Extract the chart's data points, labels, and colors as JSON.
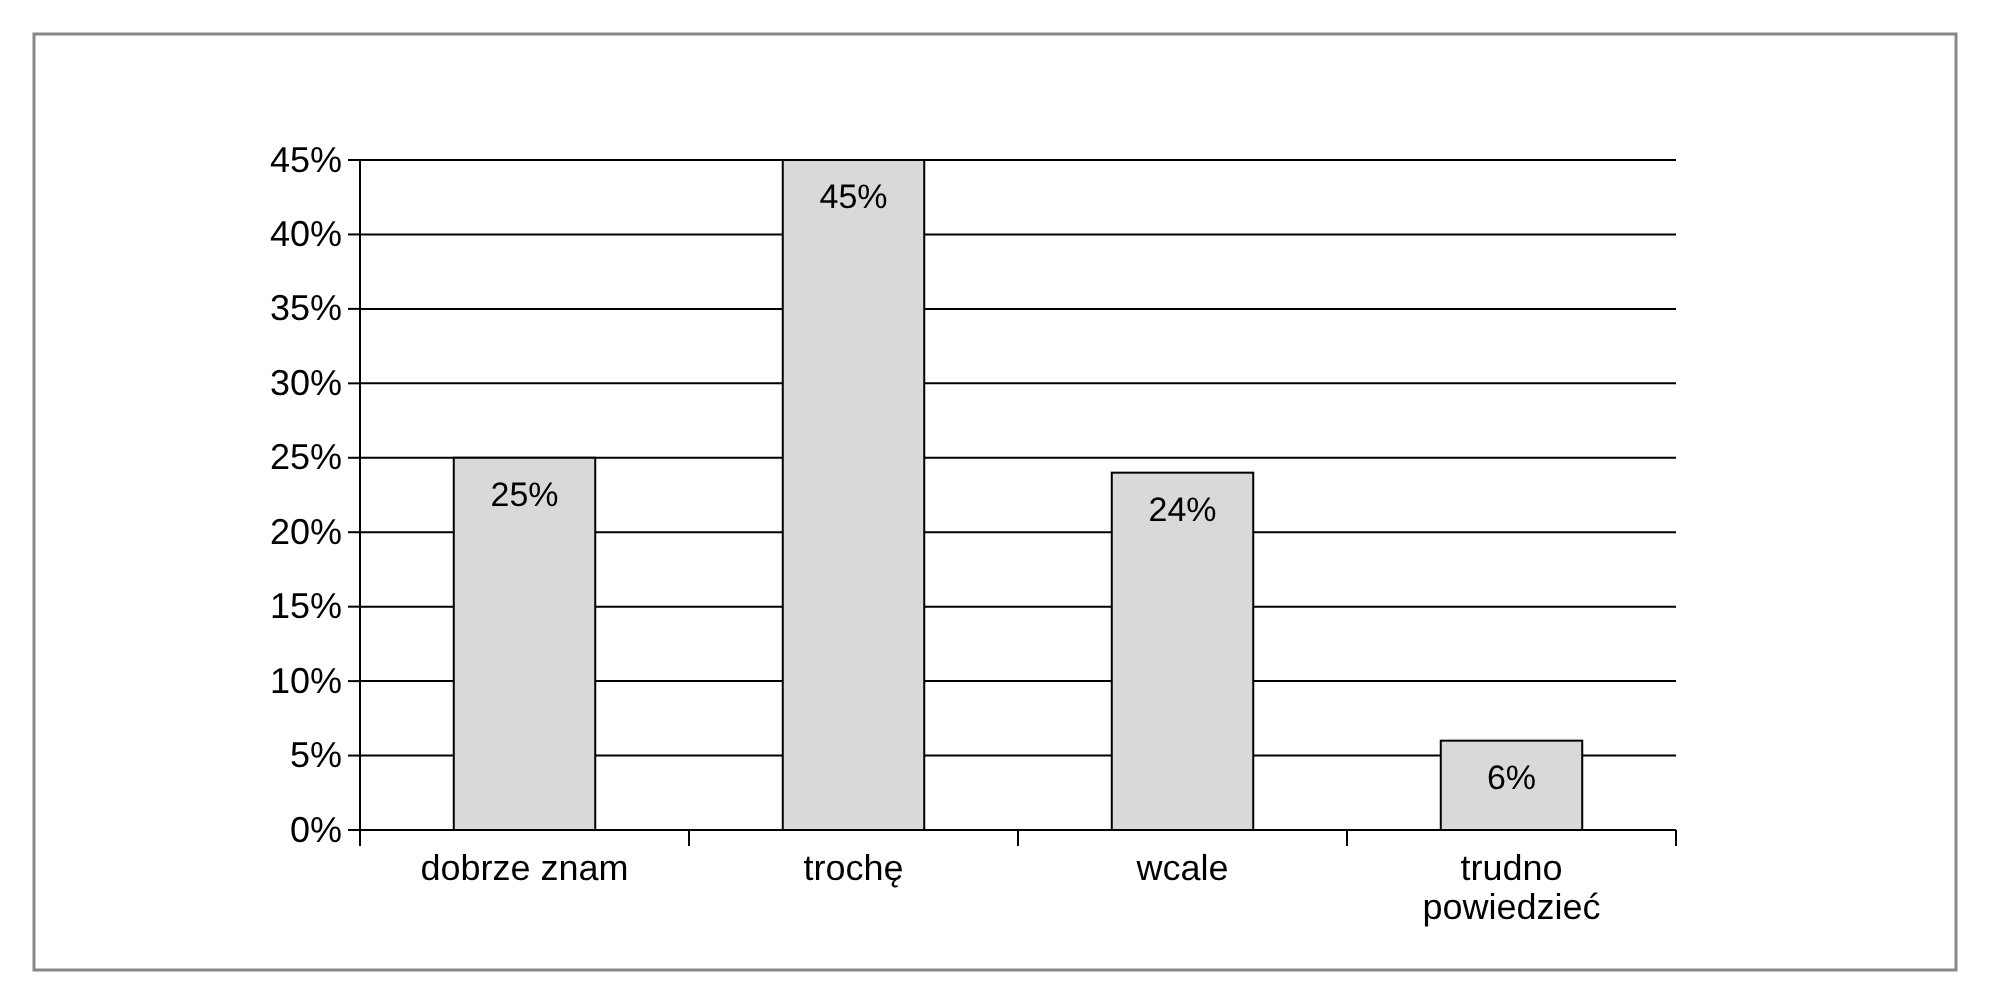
{
  "chart_data": {
    "type": "bar",
    "categories": [
      "dobrze znam",
      "trochę",
      "wcale",
      "trudno powiedzieć"
    ],
    "values": [
      25,
      45,
      24,
      6
    ],
    "color": "#d9d9d9",
    "value_labels": [
      "25%",
      "45%",
      "24%",
      "6%"
    ],
    "ylim": [
      0,
      45
    ],
    "yticks": [
      {
        "value": 0,
        "label": "0%"
      },
      {
        "value": 5,
        "label": "5%"
      },
      {
        "value": 10,
        "label": "10%"
      },
      {
        "value": 15,
        "label": "15%"
      },
      {
        "value": 20,
        "label": "20%"
      },
      {
        "value": 25,
        "label": "25%"
      },
      {
        "value": 30,
        "label": "30%"
      },
      {
        "value": 35,
        "label": "35%"
      },
      {
        "value": 40,
        "label": "40%"
      },
      {
        "value": 45,
        "label": "45%"
      }
    ],
    "grid": "y"
  }
}
